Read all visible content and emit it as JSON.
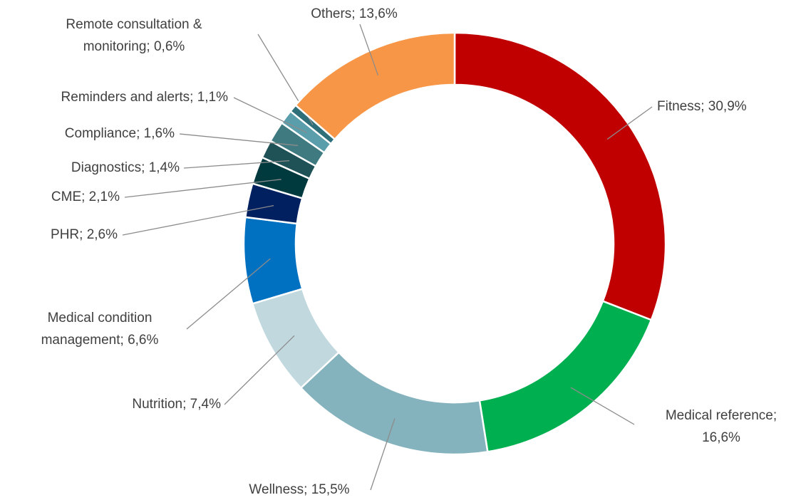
{
  "chart_data": {
    "type": "donut",
    "value_labels": [
      [
        "Fitness; 30,9%"
      ],
      [
        "Medical reference;",
        "16,6%"
      ],
      [
        "Wellness; 15,5%"
      ],
      [
        "Nutrition; 7,4%"
      ],
      [
        "Medical condition",
        "management; 6,6%"
      ],
      [
        "PHR; 2,6%"
      ],
      [
        "CME; 2,1%"
      ],
      [
        "Diagnostics; 1,4%"
      ],
      [
        "Compliance; 1,6%"
      ],
      [
        "Reminders and alerts; 1,1%"
      ],
      [
        "Remote consultation &",
        "monitoring; 0,6%"
      ],
      [
        "Others; 13,6%"
      ]
    ],
    "values": [
      30.9,
      16.6,
      15.5,
      7.4,
      6.6,
      2.6,
      2.1,
      1.4,
      1.6,
      1.1,
      0.6,
      13.6
    ],
    "colors": [
      "#c00000",
      "#00b050",
      "#84b3bd",
      "#c0d8de",
      "#0070c0",
      "#002060",
      "#003a3f",
      "#1f5257",
      "#3f7a80",
      "#5a9eab",
      "#2f6f7a",
      "#f79646"
    ]
  }
}
